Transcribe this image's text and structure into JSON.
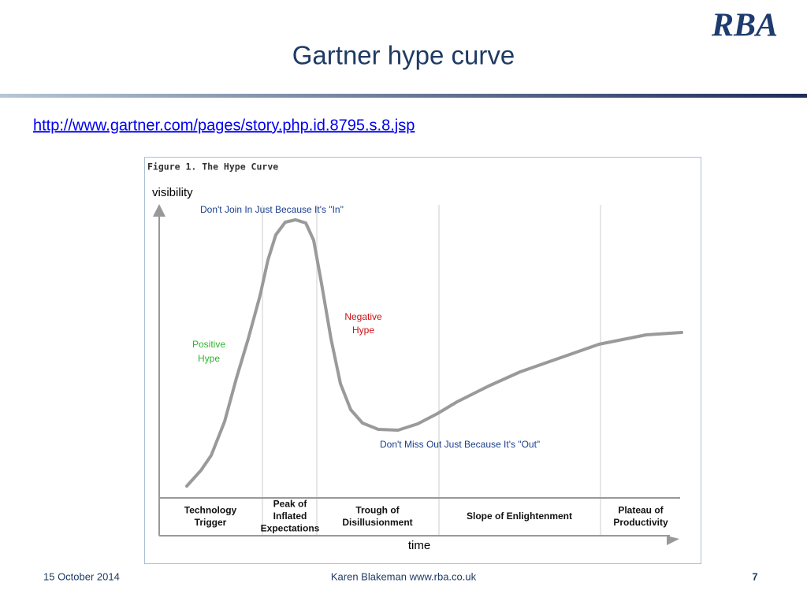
{
  "header": {
    "logo": "RBA",
    "title": "Gartner hype curve"
  },
  "link": "http://www.gartner.com/pages/story.php.id.8795.s.8.jsp",
  "figure": {
    "title": "Figure 1. The Hype Curve",
    "y_axis": "visibility",
    "x_axis": "time",
    "annotations": {
      "top": "Don't Join In Just Because It's \"In\"",
      "negative": [
        "Negative",
        "Hype"
      ],
      "positive": [
        "Positive",
        "Hype"
      ],
      "bottom": "Don't Miss Out Just Because It's \"Out\""
    },
    "phases": [
      [
        "Technology",
        "Trigger"
      ],
      [
        "Peak of",
        "Inflated",
        "Expectations"
      ],
      [
        "Trough of",
        "Disillusionment"
      ],
      [
        "Slope of Enlightenment"
      ],
      [
        "Plateau of",
        "Productivity"
      ]
    ]
  },
  "footer": {
    "date": "15 October 2014",
    "author": "Karen Blakeman www.rba.co.uk",
    "page": "7"
  }
}
